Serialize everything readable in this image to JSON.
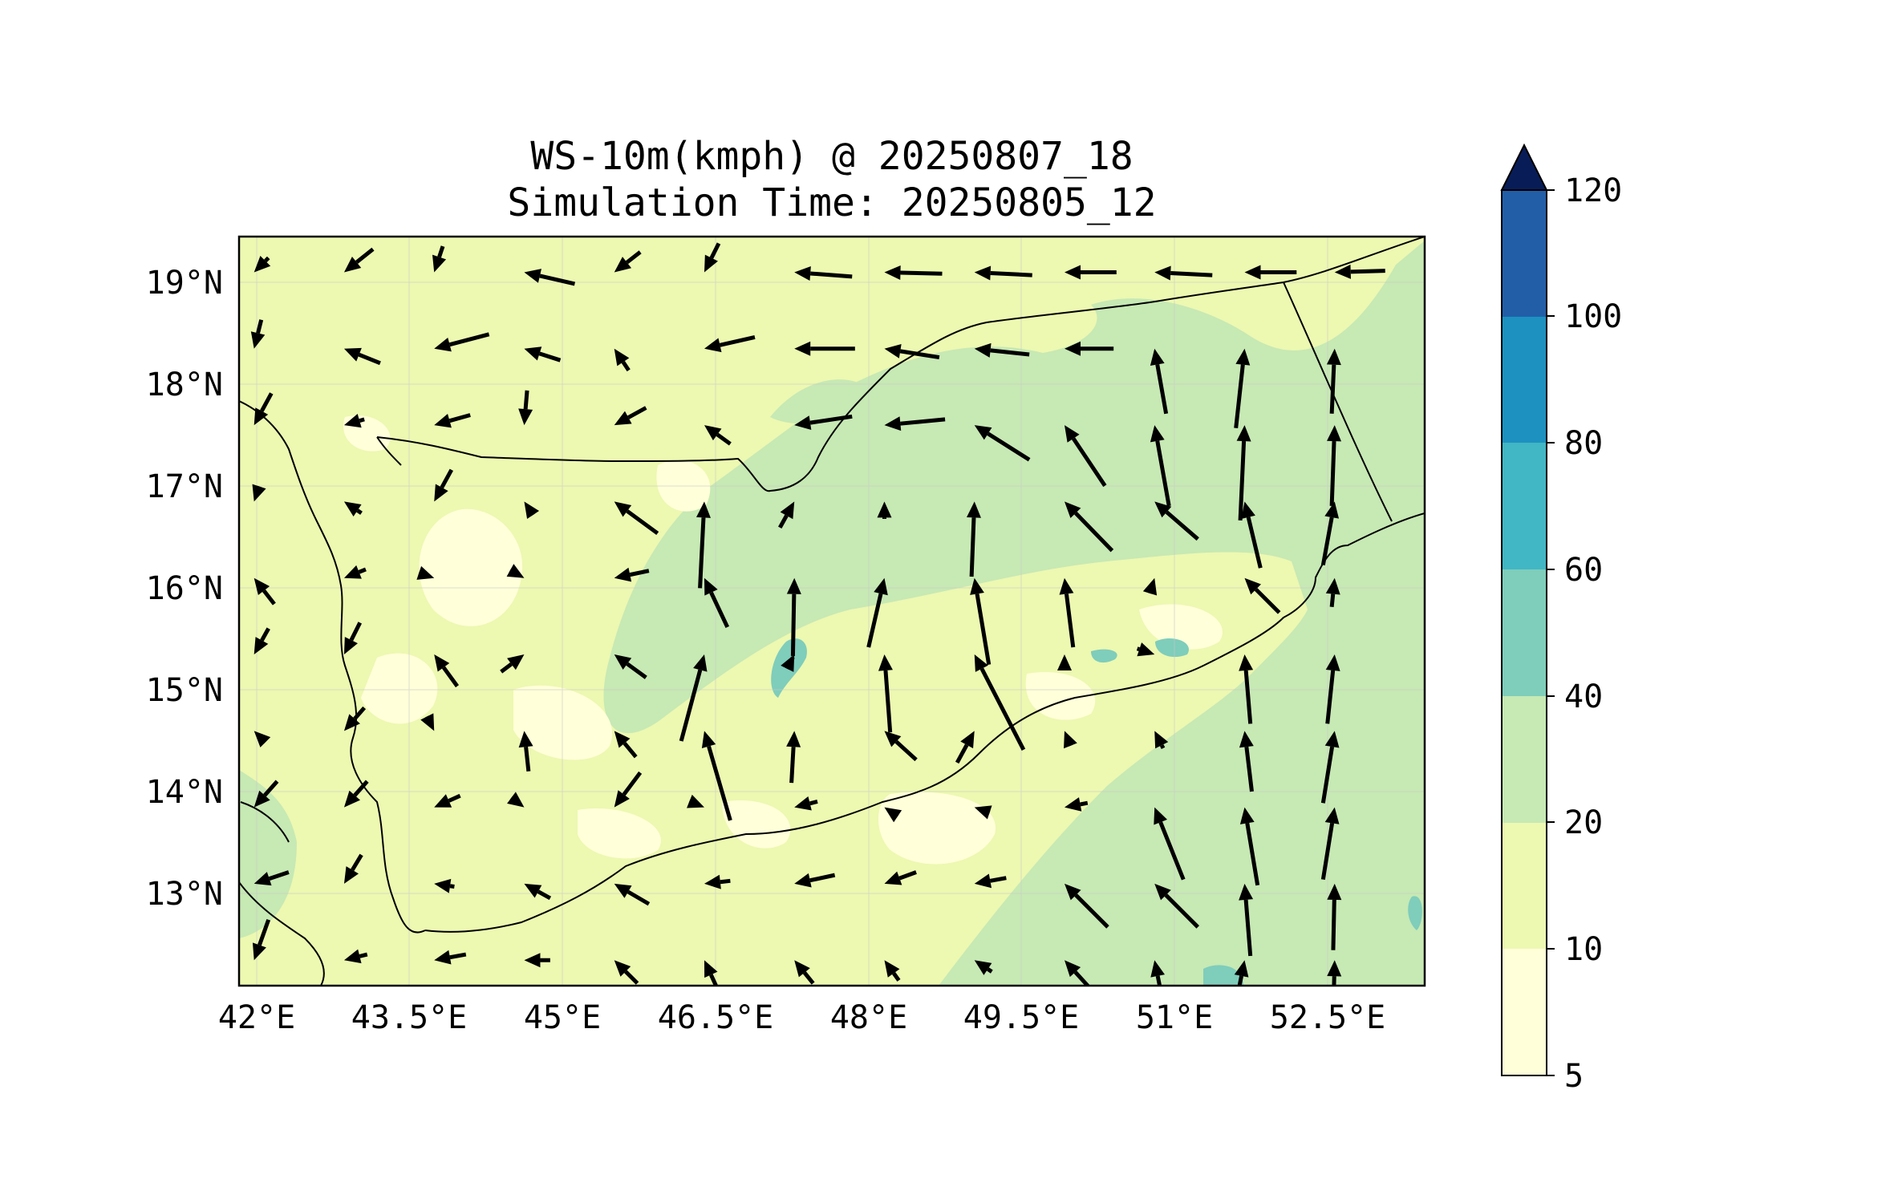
{
  "title": "WS-10m(kmph) @ 20250807_18",
  "subtitle": "Simulation Time: 20250805_12",
  "map": {
    "lon_range": [
      41.85,
      53.7
    ],
    "lat_range": [
      12.1,
      19.45
    ],
    "lon_ticks": [
      {
        "value": 42.0,
        "label": "42°E"
      },
      {
        "value": 43.5,
        "label": "43.5°E"
      },
      {
        "value": 45.0,
        "label": "45°E"
      },
      {
        "value": 46.5,
        "label": "46.5°E"
      },
      {
        "value": 48.0,
        "label": "48°E"
      },
      {
        "value": 49.5,
        "label": "49.5°E"
      },
      {
        "value": 51.0,
        "label": "51°E"
      },
      {
        "value": 52.5,
        "label": "52.5°E"
      }
    ],
    "lat_ticks": [
      {
        "value": 19.0,
        "label": "19°N"
      },
      {
        "value": 18.0,
        "label": "18°N"
      },
      {
        "value": 17.0,
        "label": "17°N"
      },
      {
        "value": 16.0,
        "label": "16°N"
      },
      {
        "value": 15.0,
        "label": "15°N"
      },
      {
        "value": 14.0,
        "label": "14°N"
      },
      {
        "value": 13.0,
        "label": "13°N"
      }
    ],
    "grid": true,
    "colorbar": {
      "levels": [
        5,
        10,
        20,
        40,
        60,
        80,
        100,
        120
      ],
      "labels": [
        "5",
        "10",
        "20",
        "40",
        "60",
        "80",
        "100",
        "120"
      ],
      "colors": [
        "#ffffd9",
        "#edf8b1",
        "#c7e9b4",
        "#7fcdbb",
        "#41b6c4",
        "#1d91c0",
        "#225ea8",
        "#0c2c84"
      ],
      "extend_color": "#081d58",
      "extend": "max"
    },
    "wind_grid_lons": [
      42.0,
      42.9,
      43.8,
      44.7,
      45.6,
      46.5,
      47.4,
      48.3,
      49.2,
      50.1,
      51.0,
      51.9,
      52.8
    ],
    "wind_grid_lats": [
      19.1,
      18.35,
      17.6,
      16.85,
      16.1,
      15.35,
      14.6,
      13.85,
      13.1,
      12.35
    ],
    "wind_rows": [
      [
        [
          -1,
          -1
        ],
        [
          -2,
          -1.6
        ],
        [
          -0.6,
          -1.8
        ],
        [
          -3.5,
          0.8
        ],
        [
          -1.8,
          -1.4
        ],
        [
          -1,
          -2
        ],
        [
          -4,
          0.3
        ],
        [
          -4,
          0.1
        ],
        [
          -4,
          0.2
        ],
        [
          -3.6,
          0
        ],
        [
          -4,
          0.2
        ],
        [
          -3.6,
          0
        ],
        [
          -3.5,
          -0.1
        ]
      ],
      [
        [
          -0.5,
          -2
        ],
        [
          -2.5,
          1
        ],
        [
          -3.8,
          -1
        ],
        [
          -2.5,
          0.8
        ],
        [
          -1,
          1.5
        ],
        [
          -3.5,
          -0.8
        ],
        [
          -4.2,
          0
        ],
        [
          -3.8,
          0.6
        ],
        [
          -3.8,
          0.4
        ],
        [
          -3.4,
          0
        ],
        [
          -0.8,
          4.5
        ],
        [
          0.6,
          5.5
        ],
        [
          0.2,
          4.5
        ]
      ],
      [
        [
          -1.2,
          -2.2
        ],
        [
          -1.4,
          -0.4
        ],
        [
          -2.5,
          -0.7
        ],
        [
          -0.2,
          -2.4
        ],
        [
          -2.2,
          -1.2
        ],
        [
          -1.8,
          1.3
        ],
        [
          -4,
          -0.6
        ],
        [
          -4.2,
          -0.4
        ],
        [
          -3.8,
          2.4
        ],
        [
          -2.8,
          4.2
        ],
        [
          -1,
          5.6
        ],
        [
          0.3,
          6.6
        ],
        [
          0.2,
          5.6
        ]
      ],
      [
        [
          -0.2,
          -0.6
        ],
        [
          -1.2,
          0.8
        ],
        [
          -1.2,
          -2.2
        ],
        [
          -0.4,
          0.6
        ],
        [
          -3,
          2.2
        ],
        [
          0.3,
          6
        ],
        [
          1,
          1.8
        ],
        [
          0,
          1.2
        ],
        [
          0.2,
          5.2
        ],
        [
          -3.3,
          3.4
        ],
        [
          -3,
          2.6
        ],
        [
          -1.1,
          4.6
        ],
        [
          0.8,
          4.4
        ]
      ],
      [
        [
          -1.4,
          1.8
        ],
        [
          -1.5,
          -0.6
        ],
        [
          0.6,
          -0.2
        ],
        [
          0.9,
          -0.5
        ],
        [
          -2.4,
          -0.5
        ],
        [
          -1.6,
          3.4
        ],
        [
          0.1,
          5.4
        ],
        [
          1.1,
          4.8
        ],
        [
          -1,
          6
        ],
        [
          -0.6,
          4.8
        ],
        [
          0.3,
          1
        ],
        [
          -2.4,
          2.4
        ],
        [
          0.2,
          2
        ]
      ],
      [
        [
          -1,
          -1.8
        ],
        [
          -1.1,
          -2.2
        ],
        [
          -1.6,
          2.2
        ],
        [
          1.6,
          1.2
        ],
        [
          -2.2,
          1.6
        ],
        [
          1.6,
          6
        ],
        [
          0.1,
          0.2
        ],
        [
          -0.4,
          5.4
        ],
        [
          -3.4,
          6.6
        ],
        [
          0,
          0.6
        ],
        [
          1.2,
          -0.4
        ],
        [
          -0.4,
          4.8
        ],
        [
          0.5,
          4.8
        ]
      ],
      [
        [
          -0.3,
          0.3
        ],
        [
          -1.4,
          -1.6
        ],
        [
          0.4,
          -0.8
        ],
        [
          -0.3,
          2.8
        ],
        [
          -1.5,
          1.8
        ],
        [
          -1.8,
          6.2
        ],
        [
          0.2,
          3.6
        ],
        [
          -2.2,
          2
        ],
        [
          1.2,
          2.2
        ],
        [
          -0.4,
          1
        ],
        [
          -0.6,
          1.2
        ],
        [
          -0.5,
          4.2
        ],
        [
          0.8,
          5
        ]
      ],
      [
        [
          -1.6,
          -1.8
        ],
        [
          -1.6,
          -1.8
        ],
        [
          -1.8,
          -0.8
        ],
        [
          0.4,
          -0.3
        ],
        [
          -1.8,
          -2.4
        ],
        [
          0.5,
          -0.2
        ],
        [
          -1.6,
          -0.4
        ],
        [
          -0.3,
          0.2
        ],
        [
          -0.6,
          0.2
        ],
        [
          -1.6,
          -0.3
        ],
        [
          -2,
          5
        ],
        [
          -0.9,
          5.4
        ],
        [
          0.8,
          5
        ]
      ],
      [
        [
          -2.4,
          -0.8
        ],
        [
          -1.2,
          -2
        ],
        [
          -1.4,
          0.2
        ],
        [
          -1.8,
          1
        ],
        [
          -2.4,
          1.4
        ],
        [
          -1.8,
          -0.2
        ],
        [
          -2.8,
          -0.6
        ],
        [
          -2.2,
          -0.8
        ],
        [
          -2.2,
          -0.4
        ],
        [
          -3,
          3
        ],
        [
          -3,
          3
        ],
        [
          -0.4,
          5
        ],
        [
          0.1,
          4.6
        ]
      ],
      [
        [
          -1,
          -2.8
        ],
        [
          -1.6,
          -0.4
        ],
        [
          -2.2,
          -0.4
        ],
        [
          -1.8,
          0
        ],
        [
          -1.6,
          1.6
        ],
        [
          -1.1,
          2.4
        ],
        [
          -1.3,
          1.6
        ],
        [
          -1,
          1.4
        ],
        [
          -1.2,
          0.8
        ],
        [
          -2,
          2.2
        ],
        [
          -1.2,
          6
        ],
        [
          0.8,
          4
        ],
        [
          0.1,
          4
        ]
      ]
    ]
  }
}
